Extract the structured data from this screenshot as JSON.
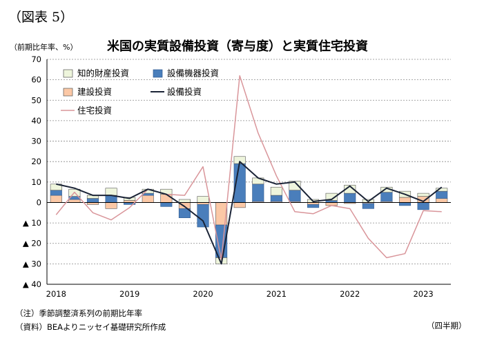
{
  "figure_label": "（図表 5）",
  "unit_label": "（前期比年率、%）",
  "title": "米国の実質設備投資（寄与度）と実質住宅投資",
  "note": "（注）季節調整済系列の前期比年率",
  "source": "（資料）BEAよりニッセイ基礎研究所作成",
  "period_label": "（四半期）",
  "colors": {
    "ip": "#eef5dc",
    "equip": "#4a7ebb",
    "struct": "#fbc8a6",
    "total": "#1a2336",
    "resid": "#d9959a"
  },
  "chart_data": {
    "type": "bar",
    "stacked": true,
    "ylim": [
      -40,
      70
    ],
    "y_ticks": [
      70,
      60,
      50,
      40,
      30,
      20,
      10,
      0,
      -10,
      -20,
      -30,
      -40
    ],
    "y_tick_labels": [
      "70",
      "60",
      "50",
      "40",
      "30",
      "20",
      "10",
      "0",
      "▲ 10",
      "▲ 20",
      "▲ 30",
      "▲ 40"
    ],
    "x_tick_labels": [
      {
        "label": "2018",
        "index": 0
      },
      {
        "label": "2019",
        "index": 4
      },
      {
        "label": "2020",
        "index": 8
      },
      {
        "label": "2021",
        "index": 12
      },
      {
        "label": "2022",
        "index": 16
      },
      {
        "label": "2023",
        "index": 20
      }
    ],
    "x": [
      "2018Q1",
      "2018Q2",
      "2018Q3",
      "2018Q4",
      "2019Q1",
      "2019Q2",
      "2019Q3",
      "2019Q4",
      "2020Q1",
      "2020Q2",
      "2020Q3",
      "2020Q4",
      "2021Q1",
      "2021Q2",
      "2021Q3",
      "2021Q4",
      "2022Q1",
      "2022Q2",
      "2022Q3",
      "2022Q4",
      "2023Q1",
      "2023Q2"
    ],
    "legend_position": "top-left",
    "series": [
      {
        "name": "知的財産投資",
        "kind": "bar",
        "values": [
          3,
          3.5,
          1.5,
          3.5,
          1.5,
          2,
          2.5,
          1.5,
          3,
          -3,
          3.5,
          3,
          4,
          4.5,
          1.5,
          3.5,
          4,
          1.5,
          2.5,
          3,
          1.5,
          1.5
        ]
      },
      {
        "name": "設備機器投資",
        "kind": "bar",
        "values": [
          2.5,
          1.5,
          2,
          3.5,
          -1,
          1,
          -2,
          -4.5,
          -11,
          -16,
          19,
          8.5,
          3,
          5.5,
          -1.5,
          1,
          4.5,
          -2.5,
          4.5,
          -1.5,
          -3.5,
          3.5
        ]
      },
      {
        "name": "建設投資",
        "kind": "bar",
        "values": [
          3.5,
          1.5,
          -1,
          -3,
          1,
          3.5,
          4,
          -3,
          -1,
          -11,
          -2.5,
          0.5,
          0.5,
          0.5,
          -1,
          -1.5,
          -0.5,
          -0.5,
          0.5,
          2.5,
          3,
          2
        ]
      },
      {
        "name": "設備投資",
        "kind": "line",
        "values": [
          9,
          7,
          3.5,
          3.5,
          2,
          6.5,
          4,
          -2,
          -9,
          -30,
          20,
          12,
          9,
          10,
          0.5,
          1.5,
          8,
          0.5,
          7,
          4,
          0.5,
          7.5
        ]
      },
      {
        "name": "住宅投資",
        "kind": "line",
        "values": [
          -6,
          5,
          -5,
          -8.5,
          -2.5,
          6.5,
          4,
          3.5,
          17.5,
          -28,
          62,
          34,
          13,
          -4.5,
          -5.5,
          -1.5,
          -3,
          -17.5,
          -27,
          -25,
          -4,
          -4.5
        ]
      }
    ]
  }
}
